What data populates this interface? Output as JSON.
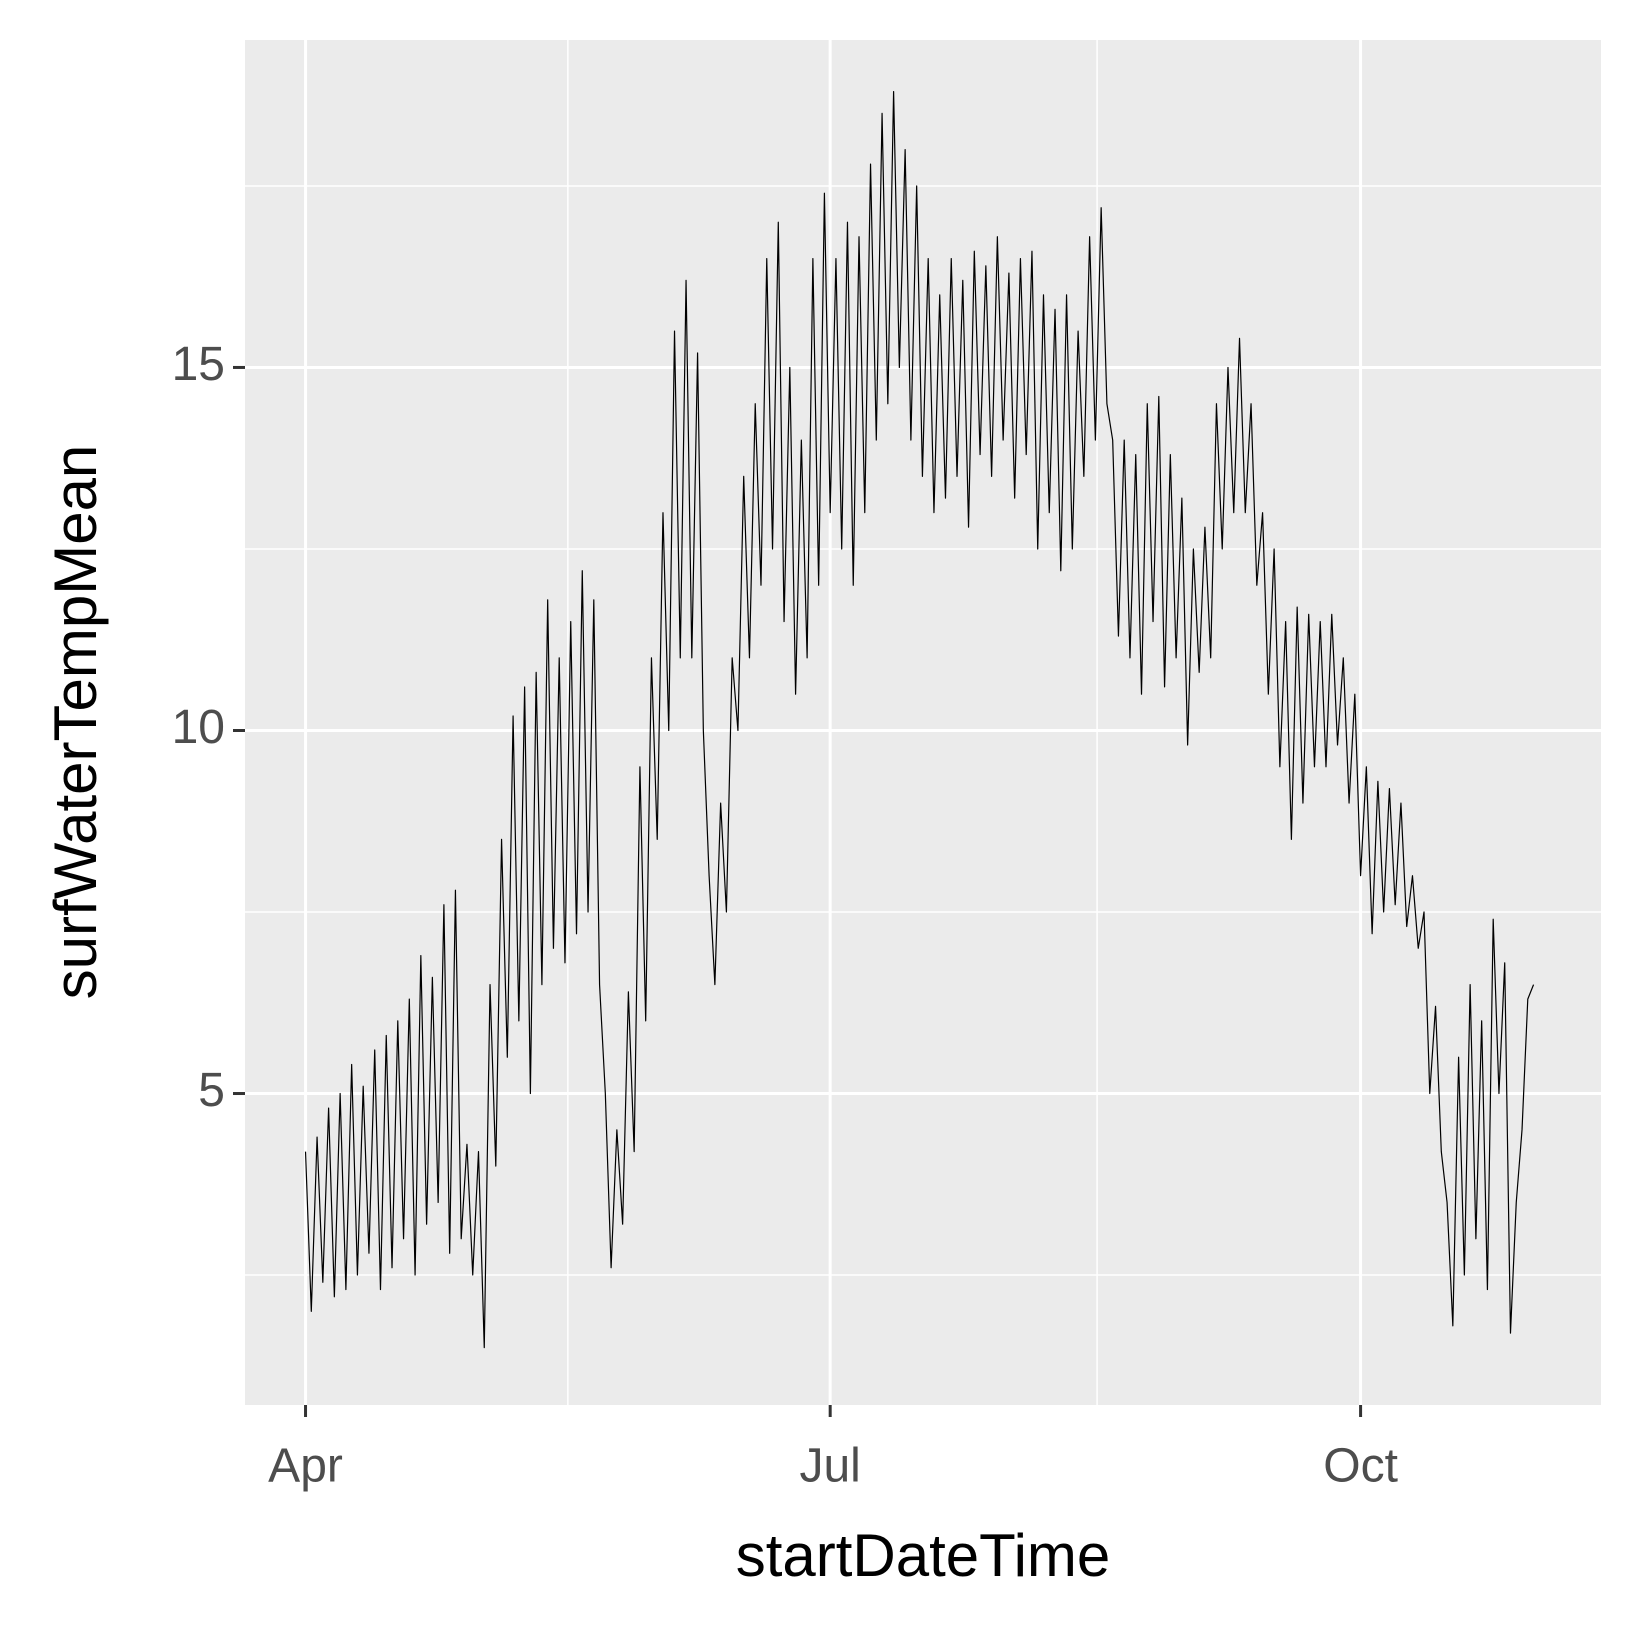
{
  "chart_data": {
    "type": "line",
    "x_label": "startDateTime",
    "y_label": "surfWaterTempMean",
    "xlim": [
      -10.5,
      224.7
    ],
    "ylim": [
      0.71,
      19.51
    ],
    "xticks": [
      {
        "value": 0,
        "label": "Apr"
      },
      {
        "value": 91,
        "label": "Jul"
      },
      {
        "value": 183,
        "label": "Oct"
      }
    ],
    "yticks": [
      5,
      10,
      15
    ],
    "x_minor_grid": [
      45.5,
      137.3
    ],
    "y_minor_grid": [
      2.5,
      7.5,
      12.5,
      17.5
    ],
    "grid": true,
    "series": [
      {
        "color": "#000000",
        "x": [
          0,
          1,
          2,
          3,
          4,
          5,
          6,
          7,
          8,
          9,
          10,
          11,
          12,
          13,
          14,
          15,
          16,
          17,
          18,
          19,
          20,
          21,
          22,
          23,
          24,
          25,
          26,
          27,
          28,
          29,
          30,
          31,
          32,
          33,
          34,
          35,
          36,
          37,
          38,
          39,
          40,
          41,
          42,
          43,
          44,
          45,
          46,
          47,
          48,
          49,
          50,
          51,
          52,
          53,
          54,
          55,
          56,
          57,
          58,
          59,
          60,
          61,
          62,
          63,
          64,
          65,
          66,
          67,
          68,
          69,
          70,
          71,
          72,
          73,
          74,
          75,
          76,
          77,
          78,
          79,
          80,
          81,
          82,
          83,
          84,
          85,
          86,
          87,
          88,
          89,
          90,
          91,
          92,
          93,
          94,
          95,
          96,
          97,
          98,
          99,
          100,
          101,
          102,
          103,
          104,
          105,
          106,
          107,
          108,
          109,
          110,
          111,
          112,
          113,
          114,
          115,
          116,
          117,
          118,
          119,
          120,
          121,
          122,
          123,
          124,
          125,
          126,
          127,
          128,
          129,
          130,
          131,
          132,
          133,
          134,
          135,
          136,
          137,
          138,
          139,
          140,
          141,
          142,
          143,
          144,
          145,
          146,
          147,
          148,
          149,
          150,
          151,
          152,
          153,
          154,
          155,
          156,
          157,
          158,
          159,
          160,
          161,
          162,
          163,
          164,
          165,
          166,
          167,
          168,
          169,
          170,
          171,
          172,
          173,
          174,
          175,
          176,
          177,
          178,
          179,
          180,
          181,
          182,
          183,
          184,
          185,
          186,
          187,
          188,
          189,
          190,
          191,
          192,
          193,
          194,
          195,
          196,
          197,
          198,
          199,
          200,
          201,
          202,
          203,
          204,
          205,
          206,
          207,
          208,
          209,
          210,
          211,
          212,
          213
        ],
        "values": [
          4.2,
          2.0,
          4.4,
          2.4,
          4.8,
          2.2,
          5.0,
          2.3,
          5.4,
          2.5,
          5.1,
          2.8,
          5.6,
          2.3,
          5.8,
          2.6,
          6.0,
          3.0,
          6.3,
          2.5,
          6.9,
          3.2,
          6.6,
          3.5,
          7.6,
          2.8,
          7.8,
          3.0,
          4.3,
          2.5,
          4.2,
          1.5,
          6.5,
          4.0,
          8.5,
          5.5,
          10.2,
          6.0,
          10.6,
          5.0,
          10.8,
          6.5,
          11.8,
          7.0,
          11.0,
          6.8,
          11.5,
          7.2,
          12.2,
          7.5,
          11.8,
          6.5,
          5.0,
          2.6,
          4.5,
          3.2,
          6.4,
          4.2,
          9.5,
          6.0,
          11.0,
          8.5,
          13.0,
          10.0,
          15.5,
          11.0,
          16.2,
          11.0,
          15.2,
          10.0,
          8.0,
          6.5,
          9.0,
          7.5,
          11.0,
          10.0,
          13.5,
          11.0,
          14.5,
          12.0,
          16.5,
          12.5,
          17.0,
          11.5,
          15.0,
          10.5,
          14.0,
          11.0,
          16.5,
          12.0,
          17.4,
          13.0,
          16.5,
          12.5,
          17.0,
          12.0,
          16.8,
          13.0,
          17.8,
          14.0,
          18.5,
          14.5,
          18.8,
          15.0,
          18.0,
          14.0,
          17.5,
          13.5,
          16.5,
          13.0,
          16.0,
          13.2,
          16.5,
          13.5,
          16.2,
          12.8,
          16.6,
          13.8,
          16.4,
          13.5,
          16.8,
          14.0,
          16.3,
          13.2,
          16.5,
          13.8,
          16.6,
          12.5,
          16.0,
          13.0,
          15.8,
          12.2,
          16.0,
          12.5,
          15.5,
          13.5,
          16.8,
          14.0,
          17.2,
          14.5,
          14.0,
          11.3,
          14.0,
          11.0,
          13.8,
          10.5,
          14.5,
          11.5,
          14.6,
          10.6,
          13.8,
          11.0,
          13.2,
          9.8,
          12.5,
          10.8,
          12.8,
          11.0,
          14.5,
          12.5,
          15.0,
          13.0,
          15.4,
          13.0,
          14.5,
          12.0,
          13.0,
          10.5,
          12.5,
          9.5,
          11.5,
          8.5,
          11.7,
          9.0,
          11.6,
          9.5,
          11.5,
          9.5,
          11.6,
          9.8,
          11.0,
          9.0,
          10.5,
          8.0,
          9.5,
          7.2,
          9.3,
          7.5,
          9.2,
          7.6,
          9.0,
          7.3,
          8.0,
          7.0,
          7.5,
          5.0,
          6.2,
          4.2,
          3.5,
          1.8,
          5.5,
          2.5,
          6.5,
          3.0,
          6.0,
          2.3,
          7.4,
          5.0,
          6.8,
          1.7,
          3.5,
          4.5,
          6.3,
          6.5
        ]
      }
    ]
  }
}
